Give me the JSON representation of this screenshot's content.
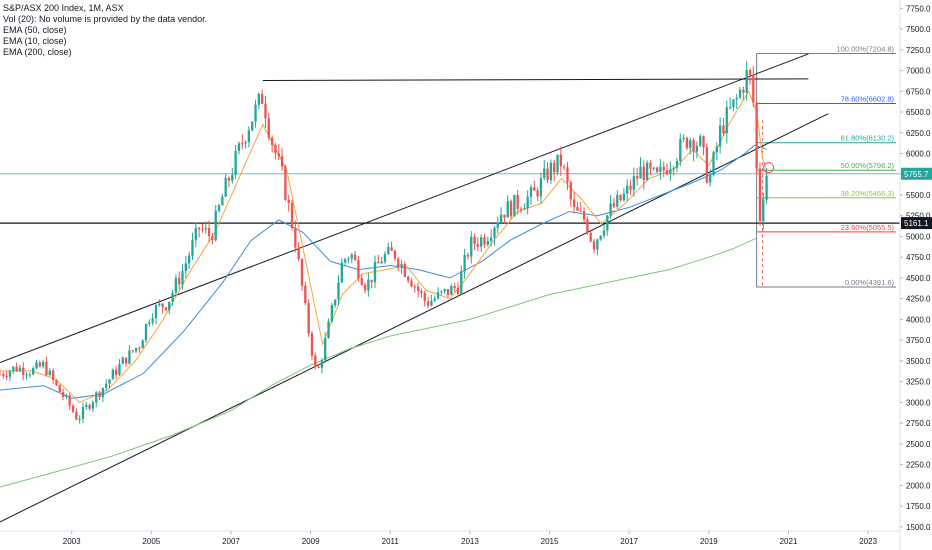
{
  "legend": {
    "title": "S&P/ASX 200 Index, 1M, ASX",
    "lines": [
      "Vol (20): No volume is provided by the data vendor.",
      "EMA (50, close)",
      "EMA (10, close)",
      "EMA (200, close)"
    ]
  },
  "colors": {
    "up": "#26a69a",
    "down": "#ef5350",
    "ema10": "#f7a43c",
    "ema50": "#3d8fd6",
    "ema200": "#7dc57b",
    "trendline": "#131722",
    "hline_cyan": "#5fc4d0"
  },
  "price_tags": [
    {
      "label": "5755.7",
      "value": 5755.7,
      "color": "#26a69a"
    },
    {
      "label": "5161.1",
      "value": 5161.1,
      "color": "#131722"
    }
  ],
  "chart_data": {
    "type": "candlestick",
    "title": "S&P/ASX 200 Index, 1M, ASX",
    "interval": "1M",
    "x_ticks": [
      "2003",
      "2005",
      "2007",
      "2009",
      "2011",
      "2013",
      "2015",
      "2017",
      "2019",
      "2021",
      "2023"
    ],
    "y_ticks": [
      1500,
      1750,
      2000,
      2250,
      2500,
      2750,
      3000,
      3250,
      3500,
      3750,
      4000,
      4250,
      4500,
      4750,
      5000,
      5250,
      5500,
      5750,
      6000,
      6250,
      6500,
      6750,
      7000,
      7250,
      7500,
      7750
    ],
    "y_tick_labels": [
      "1500.0",
      "1750.0",
      "2000.0",
      "2250.0",
      "2500.0",
      "2750.0",
      "3000.0",
      "3250.0",
      "3500.0",
      "3750.0",
      "4000.0",
      "4250.0",
      "4500.0",
      "4750.0",
      "5000.0",
      "5250.0",
      "5500.0",
      "5750.0",
      "6000.0",
      "6250.0",
      "6500.0",
      "6750.0",
      "7000.0",
      "7250.0",
      "7500.0",
      "7750.0"
    ],
    "ylim": [
      1450,
      7850
    ],
    "xlim": [
      2001.2,
      2023.8
    ],
    "close_path": [
      [
        2001.2,
        3340
      ],
      [
        2001.6,
        3420
      ],
      [
        2002.0,
        3380
      ],
      [
        2002.3,
        3450
      ],
      [
        2002.6,
        3200
      ],
      [
        2002.9,
        3000
      ],
      [
        2003.15,
        2800
      ],
      [
        2003.5,
        3020
      ],
      [
        2003.9,
        3250
      ],
      [
        2004.3,
        3500
      ],
      [
        2004.7,
        3700
      ],
      [
        2005.0,
        4100
      ],
      [
        2005.4,
        4200
      ],
      [
        2005.8,
        4600
      ],
      [
        2006.2,
        5100
      ],
      [
        2006.5,
        5000
      ],
      [
        2006.8,
        5500
      ],
      [
        2007.1,
        5900
      ],
      [
        2007.4,
        6300
      ],
      [
        2007.8,
        6700
      ],
      [
        2008.0,
        6200
      ],
      [
        2008.3,
        5700
      ],
      [
        2008.6,
        5000
      ],
      [
        2008.9,
        4000
      ],
      [
        2009.15,
        3300
      ],
      [
        2009.4,
        3800
      ],
      [
        2009.8,
        4700
      ],
      [
        2010.0,
        4800
      ],
      [
        2010.4,
        4400
      ],
      [
        2010.8,
        4750
      ],
      [
        2011.1,
        4800
      ],
      [
        2011.5,
        4500
      ],
      [
        2011.9,
        4200
      ],
      [
        2012.3,
        4300
      ],
      [
        2012.7,
        4400
      ],
      [
        2013.0,
        4900
      ],
      [
        2013.4,
        5000
      ],
      [
        2013.8,
        5300
      ],
      [
        2014.2,
        5400
      ],
      [
        2014.6,
        5500
      ],
      [
        2015.0,
        5800
      ],
      [
        2015.3,
        5900
      ],
      [
        2015.6,
        5300
      ],
      [
        2015.9,
        5200
      ],
      [
        2016.1,
        4900
      ],
      [
        2016.5,
        5300
      ],
      [
        2016.9,
        5500
      ],
      [
        2017.3,
        5800
      ],
      [
        2017.7,
        5700
      ],
      [
        2018.1,
        5950
      ],
      [
        2018.5,
        6200
      ],
      [
        2018.8,
        6100
      ],
      [
        2019.0,
        5650
      ],
      [
        2019.3,
        6300
      ],
      [
        2019.7,
        6650
      ],
      [
        2020.0,
        7000
      ],
      [
        2020.15,
        6500
      ],
      [
        2020.25,
        5100
      ],
      [
        2020.35,
        5500
      ],
      [
        2020.45,
        5755.7
      ]
    ],
    "series": [
      {
        "name": "EMA (10, close)",
        "color": "#f7a43c",
        "points": [
          [
            2001.2,
            3380
          ],
          [
            2002.0,
            3380
          ],
          [
            2002.6,
            3280
          ],
          [
            2003.2,
            3000
          ],
          [
            2003.9,
            3150
          ],
          [
            2004.6,
            3500
          ],
          [
            2005.3,
            4000
          ],
          [
            2006.0,
            4600
          ],
          [
            2006.6,
            5050
          ],
          [
            2007.2,
            5700
          ],
          [
            2007.8,
            6350
          ],
          [
            2008.4,
            5800
          ],
          [
            2008.9,
            4650
          ],
          [
            2009.3,
            3700
          ],
          [
            2009.8,
            4300
          ],
          [
            2010.3,
            4550
          ],
          [
            2010.9,
            4600
          ],
          [
            2011.4,
            4650
          ],
          [
            2011.9,
            4350
          ],
          [
            2012.5,
            4250
          ],
          [
            2013.0,
            4550
          ],
          [
            2013.6,
            4950
          ],
          [
            2014.2,
            5300
          ],
          [
            2014.8,
            5400
          ],
          [
            2015.3,
            5700
          ],
          [
            2015.8,
            5450
          ],
          [
            2016.3,
            5150
          ],
          [
            2016.9,
            5400
          ],
          [
            2017.5,
            5700
          ],
          [
            2018.1,
            5800
          ],
          [
            2018.6,
            6050
          ],
          [
            2019.0,
            5850
          ],
          [
            2019.5,
            6350
          ],
          [
            2020.0,
            6750
          ],
          [
            2020.2,
            6500
          ],
          [
            2020.35,
            5950
          ],
          [
            2020.45,
            5800
          ]
        ]
      },
      {
        "name": "EMA (50, close)",
        "color": "#3d8fd6",
        "points": [
          [
            2001.2,
            3150
          ],
          [
            2002.3,
            3200
          ],
          [
            2003.0,
            3050
          ],
          [
            2003.8,
            3100
          ],
          [
            2004.8,
            3350
          ],
          [
            2005.8,
            3850
          ],
          [
            2006.8,
            4450
          ],
          [
            2007.5,
            4950
          ],
          [
            2008.2,
            5200
          ],
          [
            2008.8,
            5050
          ],
          [
            2009.5,
            4700
          ],
          [
            2010.2,
            4600
          ],
          [
            2011.0,
            4650
          ],
          [
            2011.7,
            4600
          ],
          [
            2012.5,
            4500
          ],
          [
            2013.3,
            4700
          ],
          [
            2014.0,
            4950
          ],
          [
            2014.8,
            5150
          ],
          [
            2015.5,
            5300
          ],
          [
            2016.2,
            5250
          ],
          [
            2017.0,
            5350
          ],
          [
            2017.8,
            5500
          ],
          [
            2018.6,
            5650
          ],
          [
            2019.3,
            5800
          ],
          [
            2019.9,
            6000
          ],
          [
            2020.15,
            6100
          ],
          [
            2020.45,
            6050
          ]
        ]
      },
      {
        "name": "EMA (200, close)",
        "color": "#7dc57b",
        "points": [
          [
            2001.2,
            1980
          ],
          [
            2002.5,
            2150
          ],
          [
            2004.0,
            2350
          ],
          [
            2005.5,
            2600
          ],
          [
            2007.0,
            2900
          ],
          [
            2008.0,
            3200
          ],
          [
            2009.0,
            3450
          ],
          [
            2010.0,
            3650
          ],
          [
            2011.0,
            3800
          ],
          [
            2012.0,
            3900
          ],
          [
            2013.0,
            4000
          ],
          [
            2014.0,
            4150
          ],
          [
            2015.0,
            4300
          ],
          [
            2016.0,
            4400
          ],
          [
            2017.0,
            4500
          ],
          [
            2018.0,
            4600
          ],
          [
            2019.0,
            4750
          ],
          [
            2019.6,
            4850
          ],
          [
            2020.2,
            4980
          ]
        ]
      }
    ],
    "trendlines": [
      {
        "from": [
          2001.2,
          3480
        ],
        "to": [
          2021.5,
          7200
        ]
      },
      {
        "from": [
          2001.2,
          1560
        ],
        "to": [
          2022.0,
          6480
        ]
      },
      {
        "from": [
          2007.8,
          6880
        ],
        "to": [
          2021.5,
          6900
        ]
      }
    ],
    "horizontal_lines": [
      {
        "value": 5755.7,
        "color": "#5fc4d0"
      },
      {
        "value": 5161.1,
        "color": "#131722"
      }
    ],
    "fibonacci": {
      "x_start": 2020.2,
      "x_end": 2023.7,
      "levels": [
        {
          "label": "100.00%(7204.8)",
          "value": 7204.8,
          "color": "#787b86"
        },
        {
          "label": "78.60%(6602.8)",
          "value": 6602.8,
          "color": "#2962ff"
        },
        {
          "label": "61.80%(6130.2)",
          "value": 6130.2,
          "color": "#26a69a"
        },
        {
          "label": "50.00%(5798.2)",
          "value": 5798.2,
          "color": "#4caf50"
        },
        {
          "label": "38.20%(5466.3)",
          "value": 5466.3,
          "color": "#8bc34a"
        },
        {
          "label": "23.60%(5055.5)",
          "value": 5055.5,
          "color": "#f44336"
        },
        {
          "label": "0.00%(4391.6)",
          "value": 4391.6,
          "color": "#787b86"
        }
      ]
    }
  }
}
